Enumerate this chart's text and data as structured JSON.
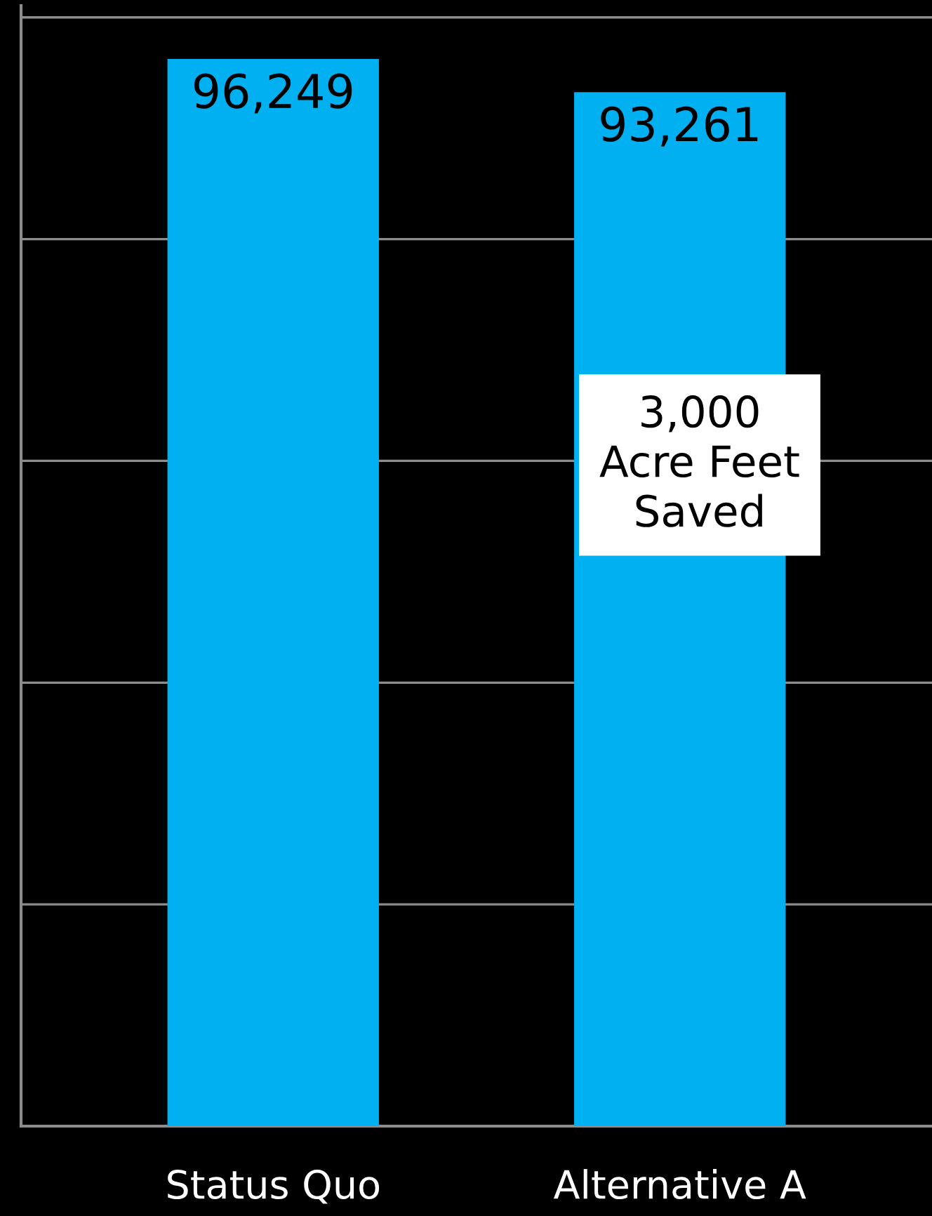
{
  "chart_data": {
    "type": "bar",
    "categories": [
      "Status Quo",
      "Alternative A"
    ],
    "series": [
      {
        "color": "#00b0f0",
        "values": [
          96249,
          93261
        ],
        "value_labels": [
          "96,249",
          "93,261"
        ]
      }
    ],
    "tick_labels": "x",
    "grid": "y",
    "annotations": [
      "3,000\nAcre Feet\nSaved"
    ]
  }
}
